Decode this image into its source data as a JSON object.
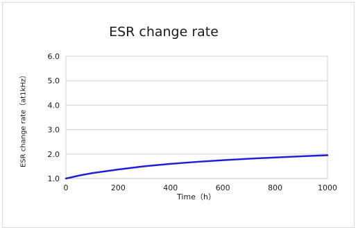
{
  "chart_data": {
    "type": "line",
    "title": "ESR change rate",
    "xlabel": "Time（h）",
    "ylabel": "ESR change rate（at1kHz）",
    "xlim": [
      0,
      1000
    ],
    "ylim": [
      1.0,
      6.0
    ],
    "x_ticks": [
      "0",
      "200",
      "400",
      "600",
      "800",
      "1000"
    ],
    "y_ticks": [
      "1.0",
      "2.0",
      "3.0",
      "4.0",
      "5.0",
      "6.0"
    ],
    "grid": true,
    "legend": "none",
    "series": [
      {
        "color": "#1f1fd6",
        "x": [
          0,
          50,
          100,
          200,
          300,
          400,
          500,
          600,
          700,
          800,
          900,
          1000
        ],
        "y": [
          1.0,
          1.12,
          1.22,
          1.37,
          1.5,
          1.6,
          1.68,
          1.75,
          1.81,
          1.86,
          1.91,
          1.95
        ]
      }
    ]
  }
}
